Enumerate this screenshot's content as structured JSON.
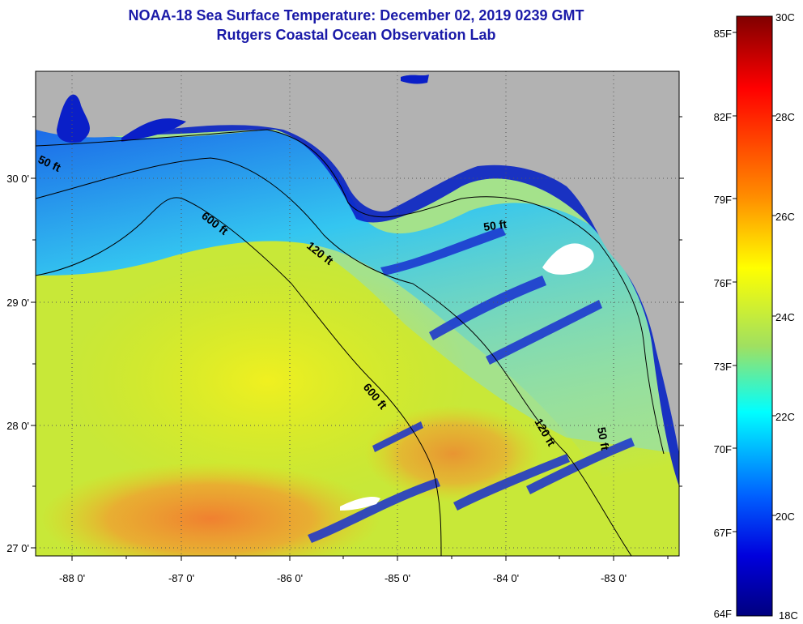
{
  "title": "NOAA-18 Sea Surface Temperature:  December 02, 2019 0239 GMT",
  "subtitle": "Rutgers Coastal Ocean Observation Lab",
  "map": {
    "lon_range": [
      -88.35,
      -82.55
    ],
    "lat_range": [
      26.96,
      30.87
    ],
    "lon_ticks": [
      "-88 0'",
      "-87 0'",
      "-86 0'",
      "-85 0'",
      "-84 0'",
      "-83 0'"
    ],
    "lat_ticks": [
      "30 0'",
      "29 0'",
      "28 0'",
      "27 0'"
    ],
    "contour_labels": [
      "50 ft",
      "600 ft",
      "120 ft",
      "50 ft",
      "600 ft",
      "120 ft",
      "50 ft"
    ],
    "colors": {
      "land": "#b2b2b2",
      "frame": "#000000",
      "grid": "#555555"
    }
  },
  "colorbar": {
    "fahrenheit_labels": [
      "85F",
      "82F",
      "79F",
      "76F",
      "73F",
      "70F",
      "67F",
      "64F"
    ],
    "celsius_labels": [
      "30C",
      "28C",
      "26C",
      "24C",
      "22C",
      "20C",
      "18C"
    ],
    "range_c": [
      18,
      30
    ]
  }
}
